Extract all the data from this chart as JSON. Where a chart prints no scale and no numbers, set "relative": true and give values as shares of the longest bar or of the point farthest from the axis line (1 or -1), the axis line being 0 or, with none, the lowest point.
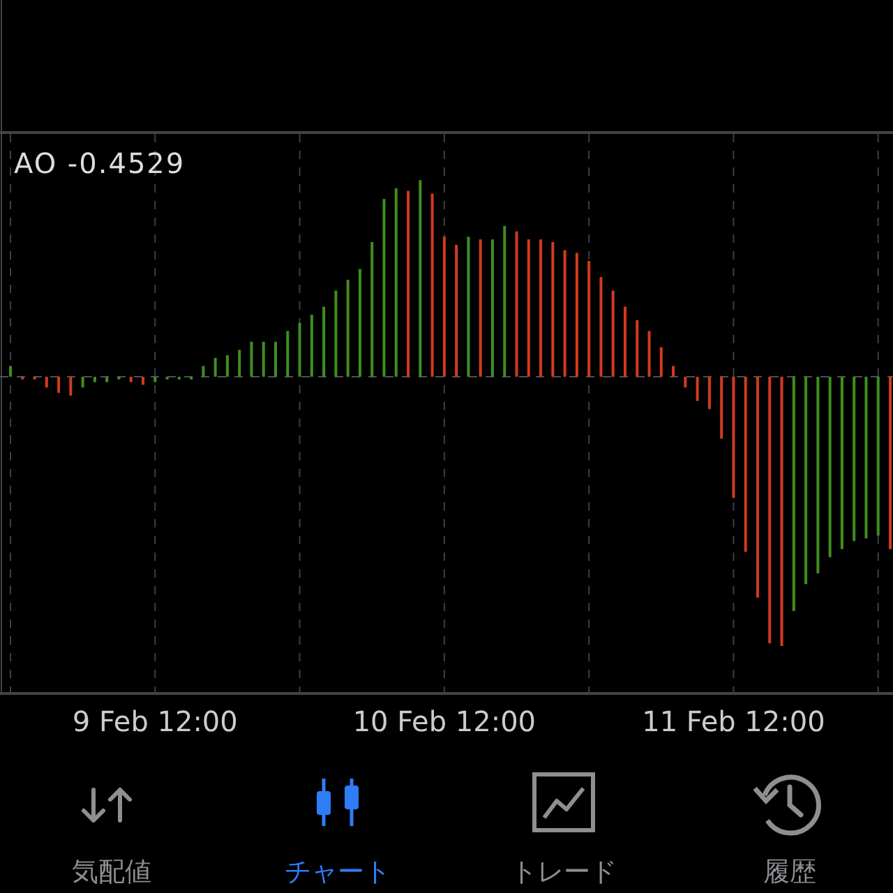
{
  "chart_data": {
    "type": "bar",
    "title": "AO -0.4529",
    "relative": true,
    "grid": "x",
    "categories": [
      null,
      null,
      null,
      null,
      null,
      null,
      null,
      null,
      null,
      null,
      null,
      null,
      "9 Feb 12:00",
      null,
      null,
      null,
      null,
      null,
      null,
      null,
      null,
      null,
      null,
      null,
      null,
      null,
      null,
      null,
      null,
      null,
      null,
      null,
      null,
      null,
      null,
      null,
      "10 Feb 12:00",
      null,
      null,
      null,
      null,
      null,
      null,
      null,
      null,
      null,
      null,
      null,
      null,
      null,
      null,
      null,
      null,
      null,
      null,
      null,
      null,
      null,
      null,
      null,
      "11 Feb 12:00",
      null,
      null,
      null,
      null,
      null,
      null,
      null,
      null,
      null,
      null,
      null,
      null,
      null
    ],
    "values": [
      0.04,
      -0.01,
      -0.01,
      -0.04,
      -0.06,
      -0.07,
      -0.04,
      -0.02,
      -0.02,
      -0.01,
      -0.02,
      -0.03,
      -0.02,
      -0.01,
      -0.01,
      -0.01,
      0.04,
      0.07,
      0.08,
      0.1,
      0.13,
      0.13,
      0.13,
      0.17,
      0.2,
      0.23,
      0.26,
      0.32,
      0.36,
      0.4,
      0.5,
      0.66,
      0.7,
      0.69,
      0.73,
      0.68,
      0.52,
      0.49,
      0.52,
      0.51,
      0.51,
      0.56,
      0.54,
      0.51,
      0.51,
      0.5,
      0.47,
      0.46,
      0.43,
      0.37,
      0.32,
      0.26,
      0.21,
      0.17,
      0.11,
      0.04,
      -0.04,
      -0.09,
      -0.12,
      -0.23,
      -0.45,
      -0.65,
      -0.82,
      -0.99,
      -1,
      -0.87,
      -0.77,
      -0.73,
      -0.67,
      -0.64,
      -0.61,
      -0.6,
      -0.59,
      -0.64
    ],
    "colors": [
      "#3f8f1f",
      "#d33a1f",
      "#d33a1f",
      "#d33a1f",
      "#d33a1f",
      "#d33a1f",
      "#3f8f1f",
      "#3f8f1f",
      "#3f8f1f",
      "#3f8f1f",
      "#d33a1f",
      "#d33a1f",
      "#3f8f1f",
      "#3f8f1f",
      "#3f8f1f",
      "#3f8f1f",
      "#3f8f1f",
      "#3f8f1f",
      "#3f8f1f",
      "#3f8f1f",
      "#3f8f1f",
      "#3f8f1f",
      "#3f8f1f",
      "#3f8f1f",
      "#3f8f1f",
      "#3f8f1f",
      "#3f8f1f",
      "#3f8f1f",
      "#3f8f1f",
      "#3f8f1f",
      "#3f8f1f",
      "#3f8f1f",
      "#3f8f1f",
      "#d33a1f",
      "#3f8f1f",
      "#d33a1f",
      "#d33a1f",
      "#d33a1f",
      "#3f8f1f",
      "#d33a1f",
      "#3f8f1f",
      "#3f8f1f",
      "#d33a1f",
      "#d33a1f",
      "#d33a1f",
      "#d33a1f",
      "#d33a1f",
      "#d33a1f",
      "#d33a1f",
      "#d33a1f",
      "#d33a1f",
      "#d33a1f",
      "#d33a1f",
      "#d33a1f",
      "#d33a1f",
      "#d33a1f",
      "#d33a1f",
      "#d33a1f",
      "#d33a1f",
      "#d33a1f",
      "#d33a1f",
      "#d33a1f",
      "#d33a1f",
      "#d33a1f",
      "#d33a1f",
      "#3f8f1f",
      "#3f8f1f",
      "#3f8f1f",
      "#3f8f1f",
      "#3f8f1f",
      "#3f8f1f",
      "#3f8f1f",
      "#3f8f1f",
      "#d33a1f"
    ],
    "ref_lines": [
      {
        "axis": "y",
        "value": 0,
        "color": "#4a4f5e",
        "line_style": "dashed"
      }
    ],
    "annotations": [
      "気配値",
      "チャート",
      "トレード",
      "履歴"
    ]
  }
}
